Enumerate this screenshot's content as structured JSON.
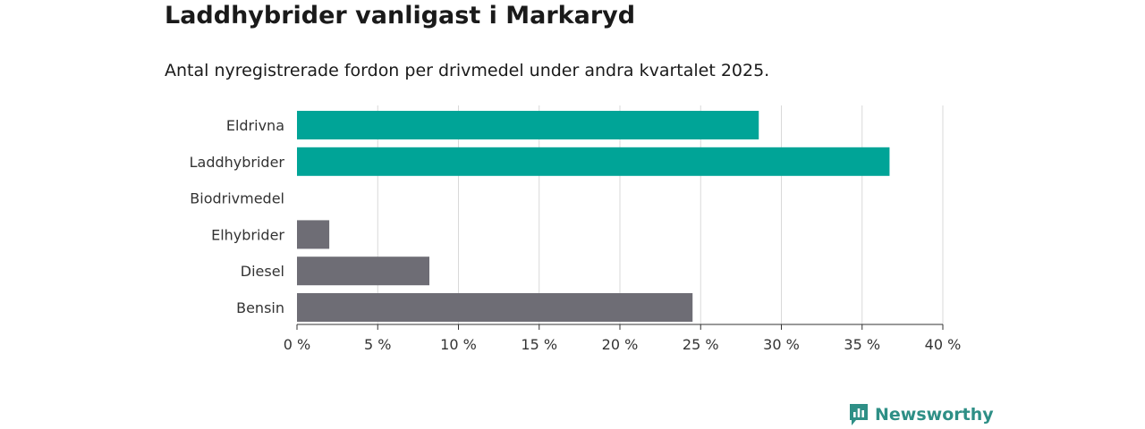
{
  "header": {
    "title": "Laddhybrider vanligast i Markaryd",
    "subtitle": "Antal nyregistrerade fordon per drivmedel under andra kvartalet 2025."
  },
  "brand": {
    "name": "Newsworthy",
    "icon": "newsworthy-logo-icon",
    "color": "#2e8f86"
  },
  "colors": {
    "highlight": "#00a497",
    "other": "#6e6d75",
    "grid": "#d9d9d9",
    "axis": "#333333"
  },
  "chart_data": {
    "type": "bar",
    "orientation": "horizontal",
    "categories": [
      "Eldrivna",
      "Laddhybrider",
      "Biodrivmedel",
      "Elhybrider",
      "Diesel",
      "Bensin"
    ],
    "values": [
      28.6,
      36.7,
      0,
      2.0,
      8.2,
      24.5
    ],
    "highlighted": [
      true,
      true,
      false,
      false,
      false,
      false
    ],
    "x_ticks": [
      0,
      5,
      10,
      15,
      20,
      25,
      30,
      35,
      40
    ],
    "x_tick_labels": [
      "0 %",
      "5 %",
      "10 %",
      "15 %",
      "20 %",
      "25 %",
      "30 %",
      "35 %",
      "40 %"
    ],
    "xlim": [
      0,
      40
    ],
    "grid": true,
    "legend": "none"
  }
}
